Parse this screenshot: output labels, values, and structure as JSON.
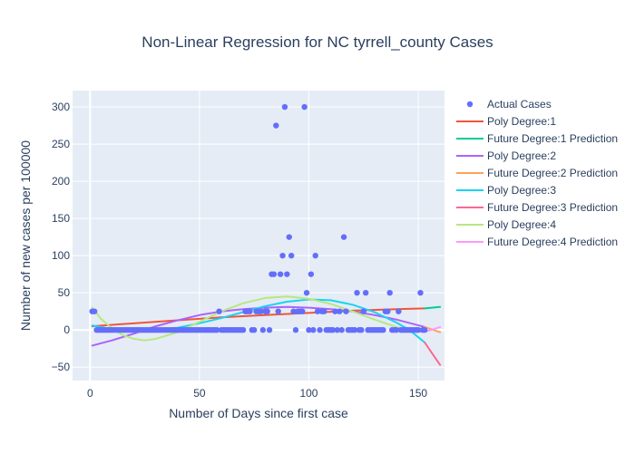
{
  "chart_data": {
    "type": "scatter",
    "title": "Non-Linear Regression for NC tyrrell_county Cases",
    "xlabel": "Number of Days since first case",
    "ylabel": "Number of new cases per 100000",
    "xlim": [
      -8,
      162
    ],
    "ylim": [
      -68,
      322
    ],
    "x_ticks": [
      0,
      50,
      100,
      150
    ],
    "y_ticks": [
      -50,
      0,
      50,
      100,
      150,
      200,
      250,
      300
    ],
    "grid": true,
    "legend_position": "right",
    "series": [
      {
        "name": "Actual Cases",
        "kind": "markers",
        "color": "#636efa",
        "points": [
          [
            1,
            25
          ],
          [
            2,
            25
          ],
          [
            3,
            0
          ],
          [
            4,
            0
          ],
          [
            5,
            0
          ],
          [
            6,
            0
          ],
          [
            7,
            0
          ],
          [
            8,
            0
          ],
          [
            9,
            0
          ],
          [
            10,
            0
          ],
          [
            11,
            0
          ],
          [
            12,
            0
          ],
          [
            13,
            0
          ],
          [
            14,
            0
          ],
          [
            15,
            0
          ],
          [
            16,
            0
          ],
          [
            17,
            0
          ],
          [
            18,
            0
          ],
          [
            19,
            0
          ],
          [
            20,
            0
          ],
          [
            21,
            0
          ],
          [
            22,
            0
          ],
          [
            23,
            0
          ],
          [
            24,
            0
          ],
          [
            25,
            0
          ],
          [
            26,
            0
          ],
          [
            27,
            0
          ],
          [
            28,
            0
          ],
          [
            29,
            0
          ],
          [
            30,
            0
          ],
          [
            31,
            0
          ],
          [
            32,
            0
          ],
          [
            33,
            0
          ],
          [
            34,
            0
          ],
          [
            35,
            0
          ],
          [
            36,
            0
          ],
          [
            37,
            0
          ],
          [
            38,
            0
          ],
          [
            39,
            0
          ],
          [
            40,
            0
          ],
          [
            41,
            0
          ],
          [
            42,
            0
          ],
          [
            43,
            0
          ],
          [
            44,
            0
          ],
          [
            45,
            0
          ],
          [
            46,
            0
          ],
          [
            47,
            0
          ],
          [
            48,
            0
          ],
          [
            49,
            0
          ],
          [
            50,
            0
          ],
          [
            51,
            0
          ],
          [
            52,
            0
          ],
          [
            53,
            0
          ],
          [
            54,
            0
          ],
          [
            55,
            0
          ],
          [
            56,
            0
          ],
          [
            57,
            0
          ],
          [
            58,
            0
          ],
          [
            59,
            25
          ],
          [
            60,
            0
          ],
          [
            61,
            0
          ],
          [
            62,
            0
          ],
          [
            63,
            0
          ],
          [
            64,
            0
          ],
          [
            65,
            0
          ],
          [
            66,
            0
          ],
          [
            67,
            0
          ],
          [
            68,
            0
          ],
          [
            69,
            0
          ],
          [
            70,
            0
          ],
          [
            71,
            25
          ],
          [
            72,
            25
          ],
          [
            73,
            25
          ],
          [
            74,
            0
          ],
          [
            75,
            0
          ],
          [
            76,
            25
          ],
          [
            77,
            25
          ],
          [
            78,
            25
          ],
          [
            79,
            0
          ],
          [
            80,
            25
          ],
          [
            81,
            25
          ],
          [
            82,
            0
          ],
          [
            83,
            75
          ],
          [
            84,
            75
          ],
          [
            85,
            275
          ],
          [
            86,
            25
          ],
          [
            87,
            75
          ],
          [
            88,
            100
          ],
          [
            89,
            300
          ],
          [
            90,
            75
          ],
          [
            91,
            125
          ],
          [
            92,
            100
          ],
          [
            93,
            25
          ],
          [
            94,
            0
          ],
          [
            95,
            25
          ],
          [
            96,
            25
          ],
          [
            97,
            25
          ],
          [
            98,
            300
          ],
          [
            99,
            50
          ],
          [
            100,
            0
          ],
          [
            101,
            75
          ],
          [
            102,
            0
          ],
          [
            103,
            100
          ],
          [
            104,
            25
          ],
          [
            105,
            0
          ],
          [
            106,
            25
          ],
          [
            107,
            25
          ],
          [
            108,
            0
          ],
          [
            109,
            0
          ],
          [
            110,
            0
          ],
          [
            111,
            0
          ],
          [
            112,
            25
          ],
          [
            113,
            0
          ],
          [
            114,
            25
          ],
          [
            115,
            0
          ],
          [
            116,
            125
          ],
          [
            117,
            25
          ],
          [
            118,
            0
          ],
          [
            119,
            0
          ],
          [
            120,
            0
          ],
          [
            121,
            0
          ],
          [
            122,
            50
          ],
          [
            123,
            0
          ],
          [
            124,
            0
          ],
          [
            125,
            25
          ],
          [
            126,
            50
          ],
          [
            127,
            0
          ],
          [
            128,
            0
          ],
          [
            129,
            0
          ],
          [
            130,
            0
          ],
          [
            131,
            0
          ],
          [
            132,
            0
          ],
          [
            133,
            0
          ],
          [
            134,
            0
          ],
          [
            135,
            25
          ],
          [
            136,
            25
          ],
          [
            137,
            50
          ],
          [
            138,
            0
          ],
          [
            139,
            0
          ],
          [
            140,
            0
          ],
          [
            141,
            25
          ],
          [
            142,
            0
          ],
          [
            143,
            0
          ],
          [
            144,
            0
          ],
          [
            145,
            0
          ],
          [
            146,
            0
          ],
          [
            147,
            0
          ],
          [
            148,
            0
          ],
          [
            149,
            0
          ],
          [
            150,
            0
          ],
          [
            151,
            50
          ],
          [
            152,
            0
          ],
          [
            153,
            0
          ]
        ]
      },
      {
        "name": "Poly Degree:1",
        "kind": "line",
        "color": "#ef553b",
        "points": [
          [
            1,
            5
          ],
          [
            20,
            9
          ],
          [
            40,
            13
          ],
          [
            60,
            17
          ],
          [
            80,
            20
          ],
          [
            100,
            23
          ],
          [
            120,
            26
          ],
          [
            140,
            28
          ],
          [
            153,
            29
          ]
        ]
      },
      {
        "name": "Future Degree:1 Prediction",
        "kind": "line",
        "color": "#00cc96",
        "points": [
          [
            153,
            29
          ],
          [
            160,
            31
          ]
        ]
      },
      {
        "name": "Poly Degree:2",
        "kind": "line",
        "color": "#ab63fa",
        "points": [
          [
            1,
            -21
          ],
          [
            10,
            -14
          ],
          [
            20,
            -5
          ],
          [
            30,
            5
          ],
          [
            40,
            13
          ],
          [
            50,
            20
          ],
          [
            60,
            25
          ],
          [
            70,
            28
          ],
          [
            80,
            30
          ],
          [
            90,
            31
          ],
          [
            100,
            30
          ],
          [
            110,
            28
          ],
          [
            120,
            25
          ],
          [
            130,
            20
          ],
          [
            140,
            14
          ],
          [
            153,
            4
          ]
        ]
      },
      {
        "name": "Future Degree:2 Prediction",
        "kind": "line",
        "color": "#ffa15a",
        "points": [
          [
            153,
            4
          ],
          [
            160,
            -3
          ]
        ]
      },
      {
        "name": "Poly Degree:3",
        "kind": "line",
        "color": "#19d3f3",
        "points": [
          [
            1,
            6
          ],
          [
            10,
            1
          ],
          [
            20,
            -1
          ],
          [
            30,
            0
          ],
          [
            40,
            3
          ],
          [
            50,
            9
          ],
          [
            60,
            16
          ],
          [
            70,
            24
          ],
          [
            80,
            32
          ],
          [
            90,
            38
          ],
          [
            100,
            41
          ],
          [
            110,
            40
          ],
          [
            120,
            34
          ],
          [
            130,
            24
          ],
          [
            140,
            10
          ],
          [
            146,
            0
          ],
          [
            153,
            -17
          ]
        ]
      },
      {
        "name": "Future Degree:3 Prediction",
        "kind": "line",
        "color": "#ff6692",
        "points": [
          [
            153,
            -17
          ],
          [
            156,
            -30
          ],
          [
            160,
            -47
          ]
        ]
      },
      {
        "name": "Poly Degree:4",
        "kind": "line",
        "color": "#b6e880",
        "points": [
          [
            1,
            30
          ],
          [
            5,
            15
          ],
          [
            10,
            2
          ],
          [
            15,
            -7
          ],
          [
            20,
            -12
          ],
          [
            25,
            -14
          ],
          [
            30,
            -12
          ],
          [
            40,
            -3
          ],
          [
            50,
            11
          ],
          [
            60,
            25
          ],
          [
            70,
            36
          ],
          [
            80,
            43
          ],
          [
            90,
            45
          ],
          [
            100,
            42
          ],
          [
            110,
            35
          ],
          [
            120,
            25
          ],
          [
            130,
            14
          ],
          [
            140,
            4
          ],
          [
            150,
            -2
          ],
          [
            153,
            -2
          ]
        ]
      },
      {
        "name": "Future Degree:4 Prediction",
        "kind": "line",
        "color": "#ff97ff",
        "points": [
          [
            153,
            -2
          ],
          [
            156,
            0
          ],
          [
            160,
            4
          ]
        ]
      }
    ]
  }
}
